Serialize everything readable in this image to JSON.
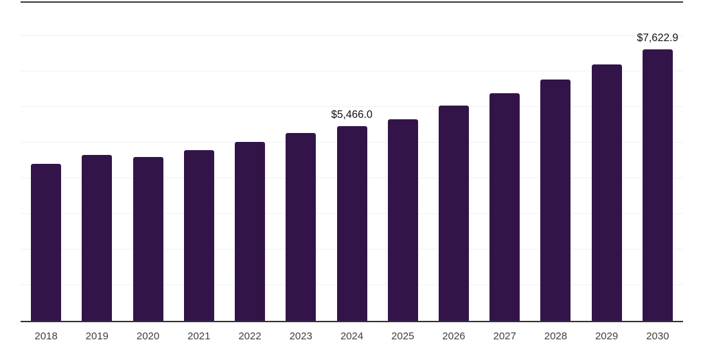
{
  "chart_data": {
    "type": "bar",
    "title": "",
    "xlabel": "",
    "ylabel": "",
    "categories": [
      "2018",
      "2019",
      "2020",
      "2021",
      "2022",
      "2023",
      "2024",
      "2025",
      "2026",
      "2027",
      "2028",
      "2029",
      "2030"
    ],
    "values": [
      4400,
      4645,
      4600,
      4780,
      5020,
      5260,
      5466.0,
      5650,
      6030,
      6380,
      6760,
      7190,
      7622.9
    ],
    "point_labels": [
      "",
      "",
      "",
      "",
      "",
      "",
      "$5,466.0",
      "",
      "",
      "",
      "",
      "",
      "$7,622.9"
    ],
    "ylim": [
      0,
      9000
    ],
    "gridline_step": 1000,
    "grid": "horizontal light-gray gridlines, no y-axis tick labels",
    "legend": "none",
    "colors": {
      "bar": "#331449",
      "axis_line": "#333333",
      "top_border": "#3c3c3c",
      "gridline": "#f1f1f3",
      "tick_label": "#3f3f3f",
      "data_label": "#111111"
    }
  }
}
